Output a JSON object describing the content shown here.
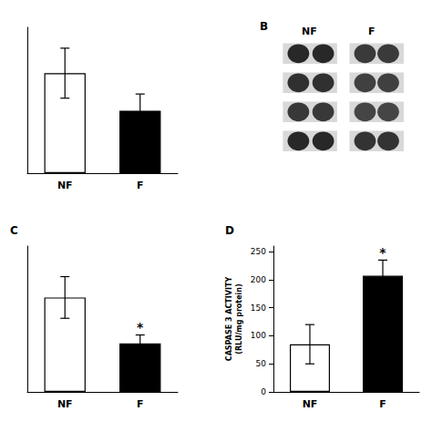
{
  "chart_data": [
    {
      "type": "bar",
      "categories": [
        "NF",
        "F"
      ],
      "values": [
        0.72,
        0.45
      ],
      "errors": [
        0.18,
        0.12
      ],
      "colors": [
        "white",
        "black"
      ],
      "ylim": [
        0,
        1.05
      ],
      "tick_labels": "x",
      "grid": false
    },
    {
      "type": "dot_blot",
      "title": "B",
      "categories": [
        "NF",
        "F"
      ]
    },
    {
      "type": "bar",
      "title": "C",
      "categories": [
        "NF",
        "F"
      ],
      "values": [
        0.68,
        0.35
      ],
      "errors": [
        0.15,
        0.06
      ],
      "colors": [
        "white",
        "black"
      ],
      "ylim": [
        0,
        1.05
      ],
      "tick_labels": "x",
      "grid": false,
      "annotations": [
        {
          "text": "*",
          "category": "F"
        }
      ]
    },
    {
      "type": "bar",
      "title": "D",
      "ylabel": "CASPASE 3 ACTIVITY\n(RLU/mg protein)",
      "categories": [
        "NF",
        "F"
      ],
      "values": [
        85,
        207
      ],
      "errors": [
        35,
        28
      ],
      "colors": [
        "white",
        "black"
      ],
      "ylim": [
        0,
        260
      ],
      "yticks": [
        0,
        50,
        100,
        150,
        200,
        250
      ],
      "grid": false,
      "annotations": [
        {
          "text": "*",
          "category": "F"
        }
      ]
    }
  ]
}
